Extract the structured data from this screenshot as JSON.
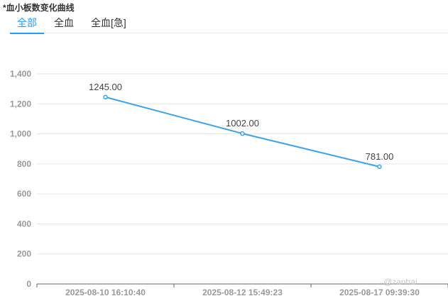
{
  "panel": {
    "title": "*血小板数变化曲线"
  },
  "tabs": [
    {
      "label": "全部",
      "active": true
    },
    {
      "label": "全血",
      "active": false
    },
    {
      "label": "全血[急]",
      "active": false
    }
  ],
  "watermark": "@zanhai",
  "colors": {
    "accent": "#1e9fff",
    "line": "#3fa3e8",
    "grid": "#e6e6e6",
    "axis": "#666666"
  },
  "chart_data": {
    "type": "line",
    "categories": [
      "2025-08-10 16:10:40",
      "2025-08-12 15:49:23",
      "2025-08-17 09:39:30"
    ],
    "series": [
      {
        "values": [
          1245.0,
          1002.0,
          781.0
        ],
        "labels": [
          "1245.00",
          "1002.00",
          "781.00"
        ]
      }
    ],
    "ylim": [
      0,
      1400
    ],
    "yticks": [
      0,
      200,
      400,
      600,
      800,
      1000,
      1200,
      1400
    ],
    "ytick_labels": [
      "0",
      "200",
      "400",
      "600",
      "800",
      "1,000",
      "1,200",
      "1,400"
    ],
    "grid": true,
    "xlabel": "",
    "ylabel": ""
  }
}
